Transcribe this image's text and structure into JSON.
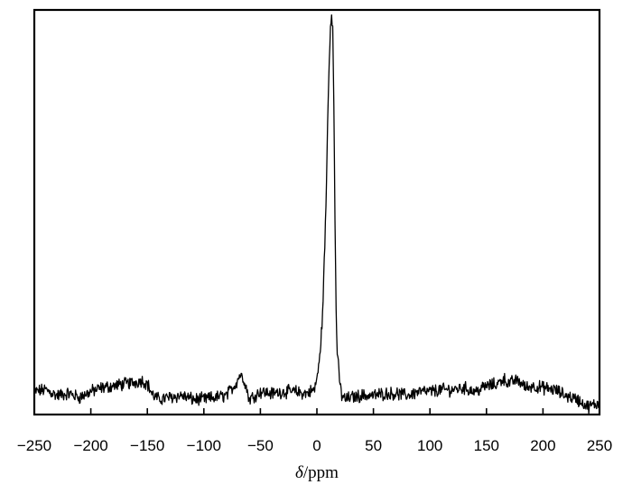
{
  "chart_data": {
    "type": "line",
    "title": "",
    "xlabel": "δ/ppm",
    "xlabel_parts": {
      "symbol": "δ",
      "unit": "/ppm"
    },
    "ylabel": "",
    "xlim": [
      -250,
      250
    ],
    "ylim": [
      -0.06,
      1.0
    ],
    "x_ticks": [
      -250,
      -200,
      -150,
      -100,
      -50,
      0,
      50,
      100,
      150,
      200,
      250
    ],
    "x_tick_labels": [
      "−250",
      "−200",
      "−150",
      "−100",
      "−50",
      "0",
      "50",
      "100",
      "150",
      "200",
      "250"
    ],
    "y_ticks_visible": false,
    "grid": false,
    "legend": "none",
    "line_color": "#000000",
    "series": [
      {
        "x": [
          -250,
          -240,
          -230,
          -220,
          -210,
          -200,
          -190,
          -180,
          -170,
          -160,
          -155,
          -150,
          -145,
          -140,
          -130,
          -120,
          -110,
          -100,
          -90,
          -80,
          -72,
          -68,
          -64,
          -60,
          -55,
          -50,
          -40,
          -30,
          -20,
          -10,
          -2,
          2,
          5,
          8,
          10,
          12,
          13,
          14,
          15,
          16,
          17,
          18,
          20,
          22,
          25,
          30,
          40,
          50,
          60,
          70,
          80,
          90,
          100,
          110,
          120,
          130,
          140,
          150,
          160,
          165,
          170,
          175,
          180,
          185,
          190,
          200,
          210,
          220,
          230,
          240,
          250
        ],
        "y": [
          0.0,
          0.005,
          -0.01,
          -0.005,
          -0.015,
          0.0,
          0.01,
          0.015,
          0.02,
          0.025,
          0.03,
          0.02,
          -0.01,
          -0.02,
          -0.015,
          -0.01,
          -0.02,
          -0.02,
          -0.015,
          -0.01,
          0.02,
          0.045,
          0.03,
          -0.02,
          -0.01,
          0.0,
          -0.005,
          0.0,
          0.0,
          -0.005,
          0.005,
          0.07,
          0.2,
          0.48,
          0.78,
          0.96,
          1.0,
          0.95,
          0.75,
          0.45,
          0.22,
          0.1,
          0.03,
          -0.01,
          -0.02,
          -0.015,
          -0.01,
          -0.01,
          -0.005,
          -0.005,
          -0.01,
          0.0,
          0.0,
          0.005,
          0.005,
          0.01,
          0.0,
          0.015,
          0.02,
          0.035,
          0.02,
          0.03,
          0.025,
          0.01,
          0.015,
          0.01,
          0.005,
          -0.01,
          -0.02,
          -0.04,
          -0.03
        ]
      }
    ]
  }
}
